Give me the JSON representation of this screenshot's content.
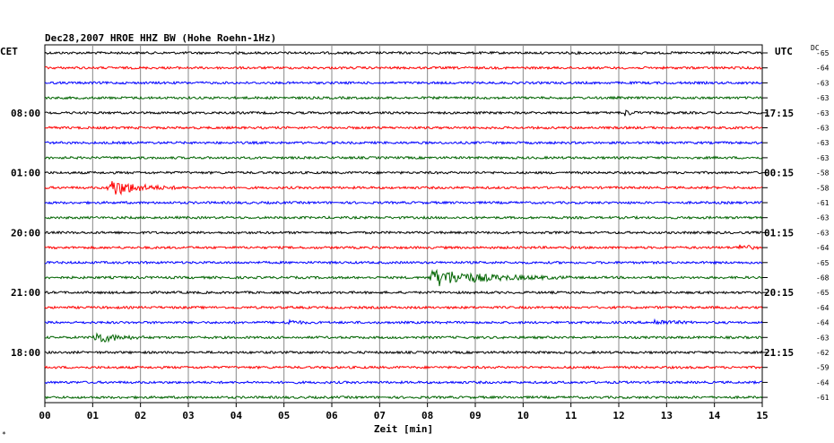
{
  "chart_data": {
    "type": "line",
    "title": "Dec28,2007   HROE HHZ BW (Hohe Roehn-1Hz)",
    "left_label": "CET",
    "right_label": "UTC",
    "dc_label": "DC",
    "xlabel": "Zeit [min]",
    "x_ticks": [
      "00",
      "01",
      "02",
      "03",
      "04",
      "05",
      "06",
      "07",
      "08",
      "09",
      "10",
      "11",
      "12",
      "13",
      "14",
      "15"
    ],
    "xlim": [
      0,
      15
    ],
    "left_time_labels": [
      "08:00",
      "01:00",
      "20:00",
      "21:00",
      "18:00"
    ],
    "right_time_labels": [
      "17:15",
      "00:15",
      "01:15",
      "20:15",
      "21:15"
    ],
    "dc_values": [
      "-65",
      "-64",
      "-63",
      "-63",
      "-63",
      "-63",
      "-63",
      "-63",
      "-58",
      "-58",
      "-61",
      "-63",
      "-63",
      "-64",
      "-65",
      "-68",
      "-65",
      "-64",
      "-64",
      "-63",
      "-62",
      "-59",
      "-64",
      "-61"
    ],
    "trace_colors": [
      "#000000",
      "#ff0000",
      "#0000ff",
      "#006400"
    ],
    "events": [
      {
        "trace": 4,
        "start_min": 12.1,
        "amplitude": 0.35,
        "duration_min": 0.4
      },
      {
        "trace": 9,
        "start_min": 1.3,
        "amplitude": 1.0,
        "duration_min": 1.6
      },
      {
        "trace": 13,
        "start_min": 14.5,
        "amplitude": 0.45,
        "duration_min": 0.5
      },
      {
        "trace": 15,
        "start_min": 8.0,
        "amplitude": 1.0,
        "duration_min": 3.0
      },
      {
        "trace": 18,
        "start_min": 5.0,
        "amplitude": 0.35,
        "duration_min": 0.6
      },
      {
        "trace": 18,
        "start_min": 12.7,
        "amplitude": 0.3,
        "duration_min": 1.0
      },
      {
        "trace": 19,
        "start_min": 1.0,
        "amplitude": 0.7,
        "duration_min": 1.2
      }
    ]
  }
}
